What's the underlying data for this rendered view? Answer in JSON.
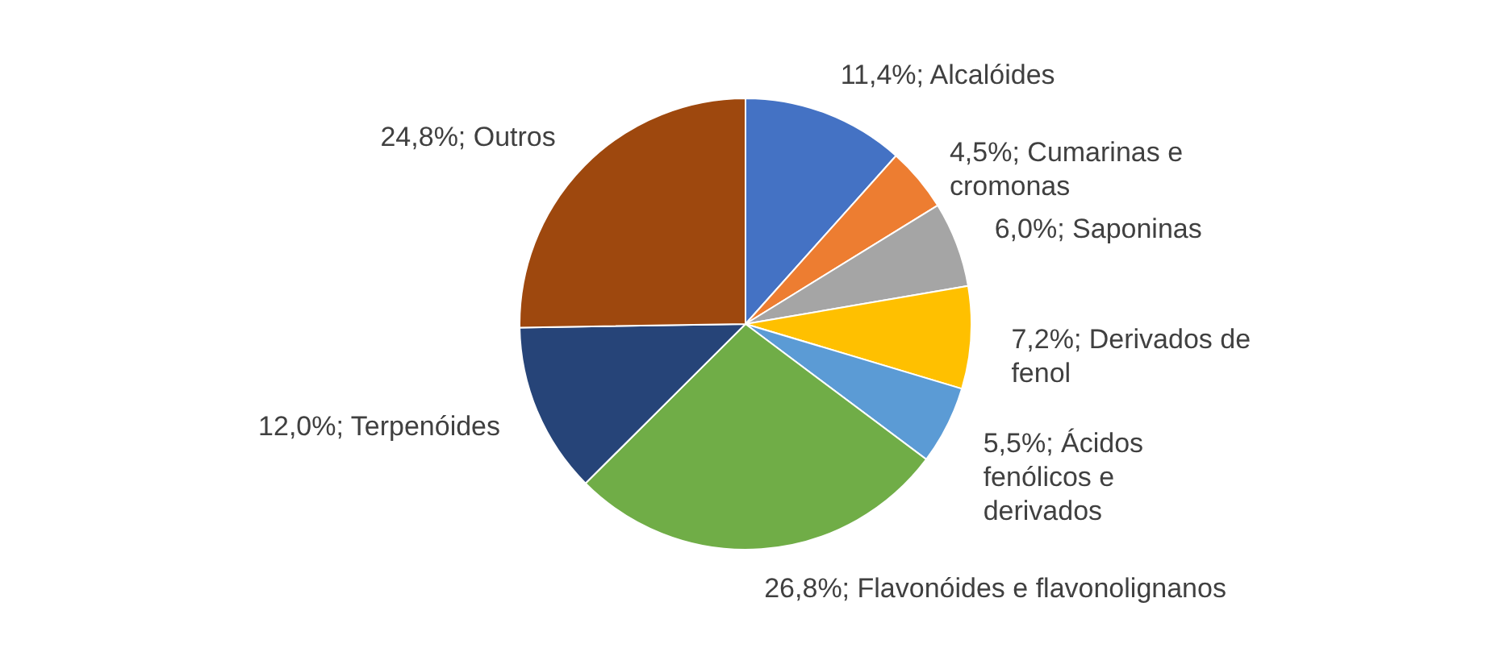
{
  "chart_data": {
    "type": "pie",
    "categories": [
      "Alcalóides",
      "Cumarinas e cromonas",
      "Saponinas",
      "Derivados de fenol",
      "Ácidos fenólicos e derivados",
      "Flavonóides e flavonolignanos",
      "Terpenóides",
      "Outros"
    ],
    "values": [
      11.4,
      4.5,
      6.0,
      7.2,
      5.5,
      26.8,
      12.0,
      24.8
    ],
    "colors": [
      "#4472c4",
      "#ed7d31",
      "#a5a5a5",
      "#ffc000",
      "#5b9bd5",
      "#70ad47",
      "#264478",
      "#9e480e"
    ],
    "value_labels": [
      "11,4%",
      "4,5%",
      "6,0%",
      "7,2%",
      "5,5%",
      "26,8%",
      "12,0%",
      "24,8%"
    ]
  }
}
